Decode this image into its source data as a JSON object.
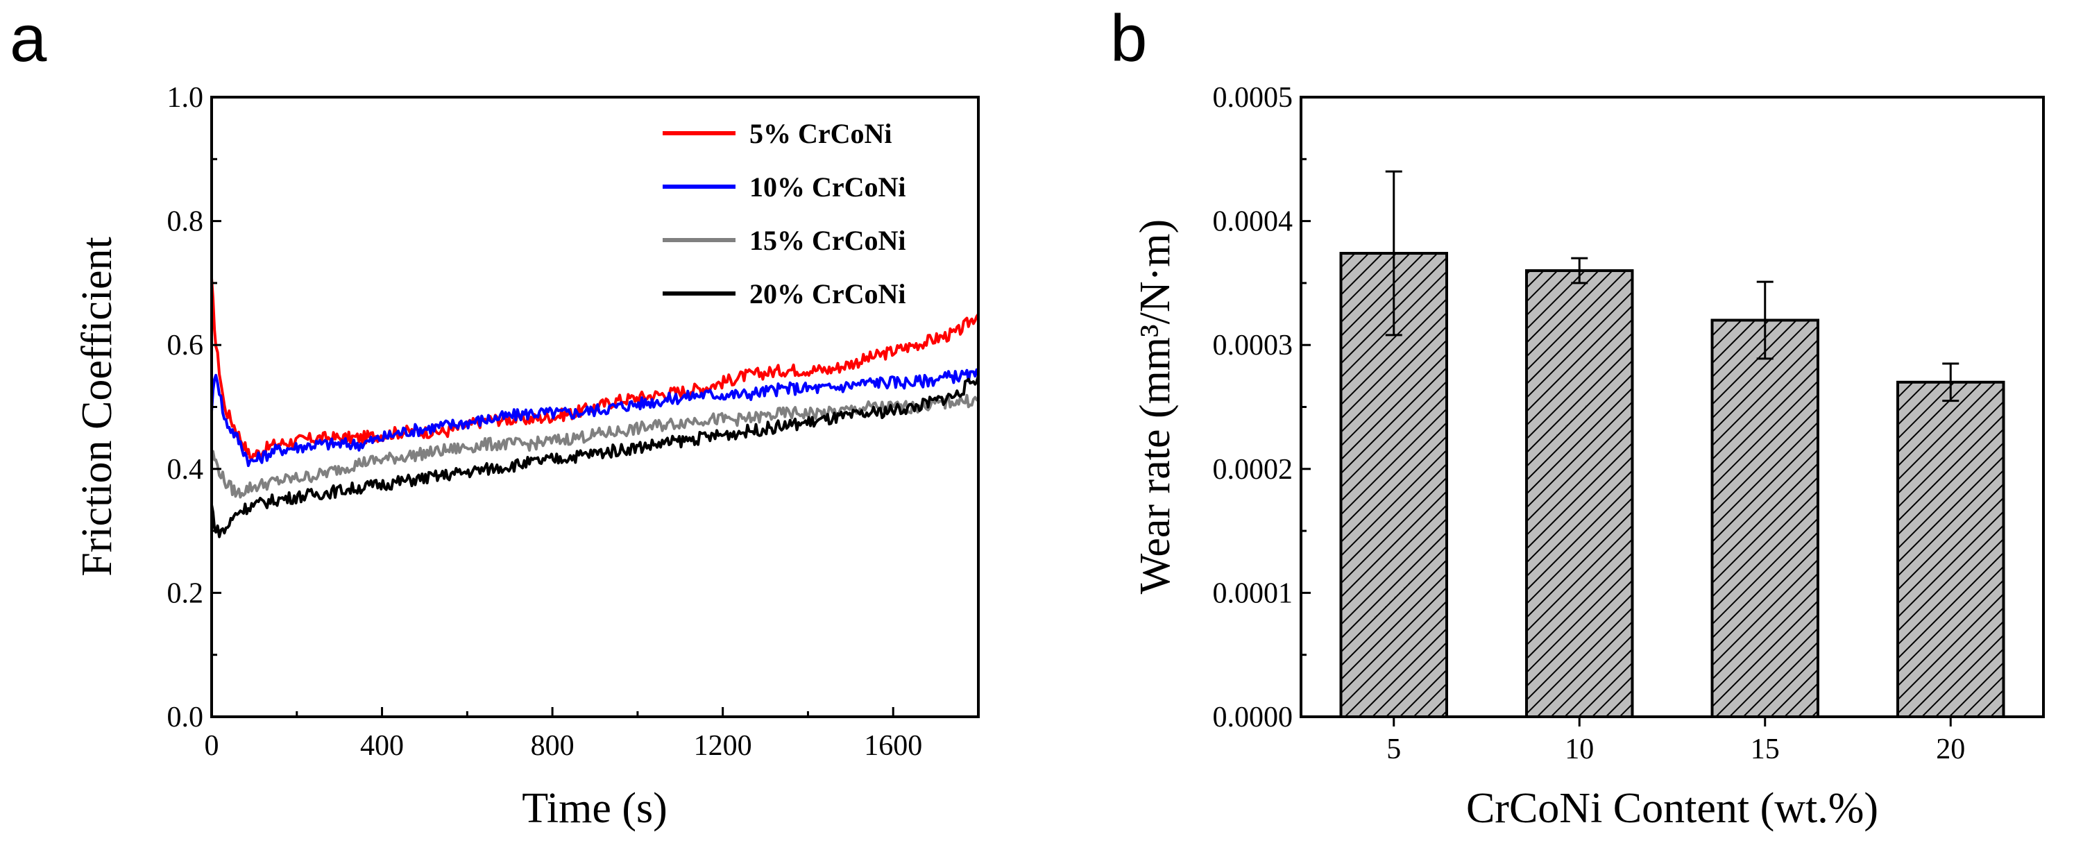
{
  "chart_data": [
    {
      "panel": "a",
      "type": "line",
      "xlabel": "Time (s)",
      "ylabel": "Friction Coefficient",
      "xlim": [
        0,
        1800
      ],
      "ylim": [
        0.0,
        1.0
      ],
      "xticks": [
        "0",
        "400",
        "800",
        "1200",
        "1600"
      ],
      "yticks": [
        "0.0",
        "0.2",
        "0.4",
        "0.6",
        "0.8",
        "1.0"
      ],
      "legend_position": "top-right",
      "series": [
        {
          "name": "5% CrCoNi",
          "color": "#ff0000",
          "x": [
            0,
            10,
            30,
            60,
            90,
            150,
            250,
            350,
            450,
            550,
            650,
            750,
            850,
            950,
            1050,
            1150,
            1250,
            1350,
            1450,
            1550,
            1650,
            1750,
            1800
          ],
          "y": [
            0.7,
            0.6,
            0.5,
            0.46,
            0.42,
            0.44,
            0.45,
            0.45,
            0.46,
            0.46,
            0.48,
            0.48,
            0.49,
            0.51,
            0.52,
            0.53,
            0.55,
            0.56,
            0.56,
            0.58,
            0.6,
            0.62,
            0.65
          ]
        },
        {
          "name": "10% CrCoNi",
          "color": "#0000ff",
          "x": [
            0,
            10,
            30,
            60,
            90,
            150,
            250,
            350,
            450,
            550,
            650,
            750,
            850,
            950,
            1050,
            1150,
            1250,
            1350,
            1450,
            1550,
            1650,
            1750,
            1800
          ],
          "y": [
            0.5,
            0.56,
            0.48,
            0.45,
            0.41,
            0.43,
            0.44,
            0.44,
            0.46,
            0.47,
            0.48,
            0.49,
            0.49,
            0.5,
            0.51,
            0.52,
            0.52,
            0.53,
            0.53,
            0.54,
            0.54,
            0.55,
            0.55
          ]
        },
        {
          "name": "15% CrCoNi",
          "color": "#808080",
          "x": [
            0,
            10,
            30,
            60,
            90,
            150,
            250,
            350,
            450,
            550,
            650,
            750,
            850,
            950,
            1050,
            1150,
            1250,
            1350,
            1450,
            1550,
            1650,
            1750,
            1800
          ],
          "y": [
            0.43,
            0.41,
            0.38,
            0.36,
            0.37,
            0.38,
            0.39,
            0.41,
            0.42,
            0.43,
            0.44,
            0.44,
            0.45,
            0.46,
            0.47,
            0.48,
            0.48,
            0.49,
            0.49,
            0.5,
            0.5,
            0.51,
            0.51
          ]
        },
        {
          "name": "20% CrCoNi",
          "color": "#000000",
          "x": [
            0,
            10,
            30,
            60,
            90,
            150,
            250,
            350,
            450,
            550,
            650,
            750,
            850,
            950,
            1050,
            1150,
            1250,
            1350,
            1450,
            1550,
            1650,
            1750,
            1800
          ],
          "y": [
            0.34,
            0.3,
            0.3,
            0.33,
            0.34,
            0.35,
            0.36,
            0.37,
            0.38,
            0.39,
            0.4,
            0.41,
            0.42,
            0.43,
            0.44,
            0.45,
            0.46,
            0.47,
            0.48,
            0.49,
            0.5,
            0.52,
            0.55
          ]
        }
      ]
    },
    {
      "panel": "b",
      "type": "bar",
      "xlabel": "CrCoNi Content (wt.%)",
      "ylabel": "Wear rate (mm³/N·m)",
      "categories": [
        "5",
        "10",
        "15",
        "20"
      ],
      "values": [
        0.000374,
        0.00036,
        0.00032,
        0.00027
      ],
      "errors": [
        6.6e-05,
        1e-05,
        3.1e-05,
        1.5e-05
      ],
      "ylim": [
        0,
        0.0005
      ],
      "yticks": [
        "0.0000",
        "0.0001",
        "0.0002",
        "0.0003",
        "0.0004",
        "0.0005"
      ],
      "bar_fill": "#bdbdbd",
      "bar_pattern": "diagonal-hatch"
    }
  ],
  "panel_letters": [
    "a",
    "b"
  ]
}
